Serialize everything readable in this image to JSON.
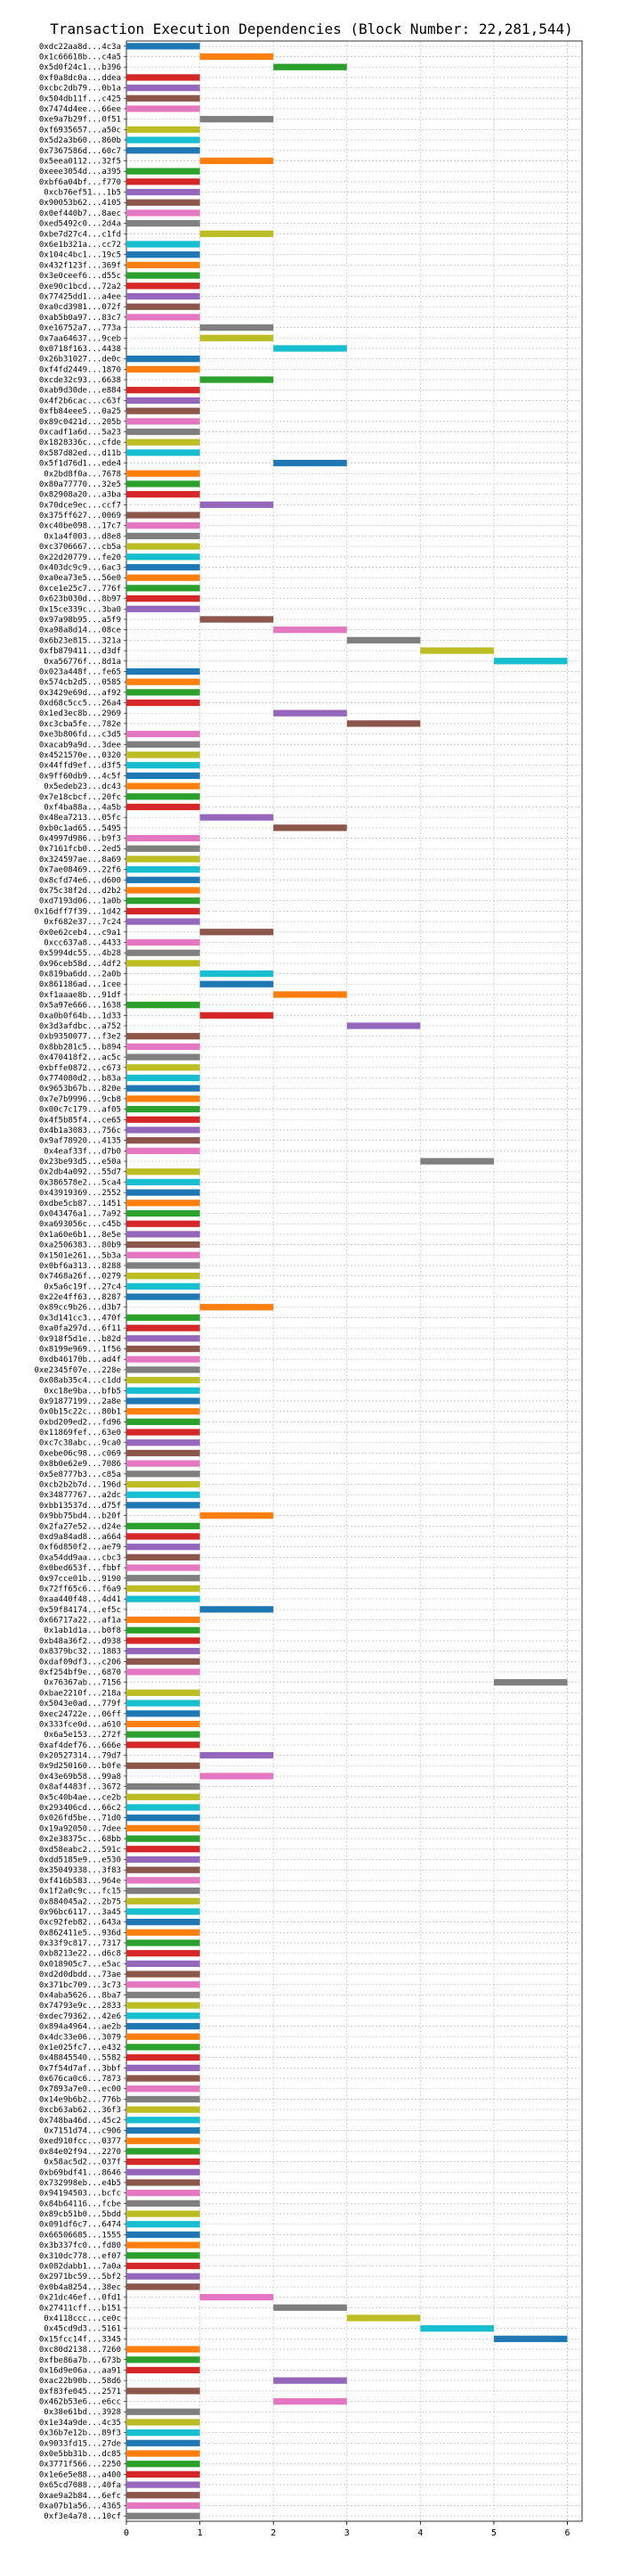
{
  "chart_data": {
    "type": "bar",
    "orientation": "horizontal-gantt",
    "title": "Transaction Execution Dependencies (Block Number: 22,281,544)",
    "xlabel": "",
    "ylabel": "",
    "xlim": [
      0,
      6.2
    ],
    "xticks": [
      0,
      1,
      2,
      3,
      4,
      5,
      6
    ],
    "grid": true,
    "colors": [
      "#1f77b4",
      "#ff7f0e",
      "#2ca02c",
      "#d62728",
      "#9467bd",
      "#8c564b",
      "#e377c2",
      "#7f7f7f",
      "#bcbd22",
      "#17becf"
    ],
    "transactions": [
      [
        "0xdc22aa8d...4c3a",
        0
      ],
      [
        "0x1c66618b...c4a5",
        1
      ],
      [
        "0x5d0f24c1...b396",
        2
      ],
      [
        "0xf0a8dc0a...ddea",
        0
      ],
      [
        "0xcbc2db79...0b1a",
        0
      ],
      [
        "0x504db11f...c425",
        0
      ],
      [
        "0x7474d4ee...66ee",
        0
      ],
      [
        "0xe9a7b29f...0f51",
        1
      ],
      [
        "0xf6935657...a50c",
        0
      ],
      [
        "0x5d2a3b60...860b",
        0
      ],
      [
        "0x7367586d...60c7",
        0
      ],
      [
        "0x5eea0112...32f5",
        1
      ],
      [
        "0xeee3054d...a395",
        0
      ],
      [
        "0xbf6a04bf...f770",
        0
      ],
      [
        "0xcb76ef51...1b5",
        0
      ],
      [
        "0x90053b62...4105",
        0
      ],
      [
        "0x0ef440b7...8aec",
        0
      ],
      [
        "0xed5492c0...2d4a",
        0
      ],
      [
        "0xbe7d27c4...c1fd",
        1
      ],
      [
        "0x6e1b321a...cc72",
        0
      ],
      [
        "0x104c4bc1...19c5",
        0
      ],
      [
        "0x432f123f...369f",
        0
      ],
      [
        "0x3e0ceef6...d55c",
        0
      ],
      [
        "0xe90c1bcd...72a2",
        0
      ],
      [
        "0x77425dd1...a4ee",
        0
      ],
      [
        "0xa0cd3981...072f",
        0
      ],
      [
        "0xab5b0a97...83c7",
        0
      ],
      [
        "0xe16752a7...773a",
        1
      ],
      [
        "0x7aa64637...9ceb",
        1
      ],
      [
        "0x0718f163...4438",
        2
      ],
      [
        "0x26b31027...de0c",
        0
      ],
      [
        "0xf4fd2449...1870",
        0
      ],
      [
        "0xcde32c93...6638",
        1
      ],
      [
        "0xab9d30de...e884",
        0
      ],
      [
        "0x4f2b6cac...c63f",
        0
      ],
      [
        "0xfb84eee5...0a25",
        0
      ],
      [
        "0x89c0421d...205b",
        0
      ],
      [
        "0xcadf1a6d...5a23",
        0
      ],
      [
        "0x1828336c...cfde",
        0
      ],
      [
        "0x587d82ed...d11b",
        0
      ],
      [
        "0x5f1d76d1...ede4",
        2
      ],
      [
        "0x2bd8f0a...7678",
        0
      ],
      [
        "0x80a77770...32e5",
        0
      ],
      [
        "0x82908a20...a3ba",
        0
      ],
      [
        "0x70dce9ec...ccf7",
        1
      ],
      [
        "0x375ff627...0069",
        0
      ],
      [
        "0xc40be098...17c7",
        0
      ],
      [
        "0x1a4f003...d8e8",
        0
      ],
      [
        "0xc3706667...cb5a",
        0
      ],
      [
        "0x22d20779...fe20",
        0
      ],
      [
        "0x403dc9c9...6ac3",
        0
      ],
      [
        "0xa0ea73e5...56e0",
        0
      ],
      [
        "0xce1e25c7...776f",
        0
      ],
      [
        "0x623b030d...8b97",
        0
      ],
      [
        "0x15ce339c...3ba0",
        0
      ],
      [
        "0x97a98b95...a5f9",
        1
      ],
      [
        "0xa98a8d14...08ce",
        2
      ],
      [
        "0x6b23e815...321a",
        3
      ],
      [
        "0xfb879411...d3df",
        4
      ],
      [
        "0xa56776f...8d1a",
        5
      ],
      [
        "0x023a448f...fe65",
        0
      ],
      [
        "0x574cb2d5...0585",
        0
      ],
      [
        "0x3429e69d...af92",
        0
      ],
      [
        "0xd68c5cc5...26a4",
        0
      ],
      [
        "0x1ed3ec8b...2969",
        2
      ],
      [
        "0xc3cba5fe...782e",
        3
      ],
      [
        "0xe3b806fd...c3d5",
        0
      ],
      [
        "0xacab9a9d...3dee",
        0
      ],
      [
        "0x4521570e...0320",
        0
      ],
      [
        "0x44ffd9ef...d3f5",
        0
      ],
      [
        "0x9ff60db9...4c5f",
        0
      ],
      [
        "0x5edeb23...dc43",
        0
      ],
      [
        "0x7e18cbcf...20fc",
        0
      ],
      [
        "0xf4ba88a...4a5b",
        0
      ],
      [
        "0x48ea7213...05fc",
        1
      ],
      [
        "0xb0c1ad65...5495",
        2
      ],
      [
        "0x4997d986...b9f3",
        0
      ],
      [
        "0x7161fcb0...2ed5",
        0
      ],
      [
        "0x324597ae...8a69",
        0
      ],
      [
        "0x7ae08469...22f6",
        0
      ],
      [
        "0x8cfd74e6...d600",
        0
      ],
      [
        "0x75c38f2d...d2b2",
        0
      ],
      [
        "0xd7193d06...1a0b",
        0
      ],
      [
        "0x16dff7f39...1d42",
        0
      ],
      [
        "0xf682e37...7c24",
        0
      ],
      [
        "0x0e62ceb4...c9a1",
        1
      ],
      [
        "0xcc637a8...4433",
        0
      ],
      [
        "0x5994dc55...4b28",
        0
      ],
      [
        "0x96ceb58d...4df2",
        0
      ],
      [
        "0x819ba6dd...2a0b",
        1
      ],
      [
        "0x861186ad...1cee",
        1
      ],
      [
        "0xf1aaae8b...91df",
        2
      ],
      [
        "0x5a97e666...1638",
        0
      ],
      [
        "0xa0b0f64b...1d33",
        1
      ],
      [
        "0x3d3afdbc...a752",
        3
      ],
      [
        "0xb9350077...f3e2",
        0
      ],
      [
        "0x8bb281c5...b894",
        0
      ],
      [
        "0x470418f2...ac5c",
        0
      ],
      [
        "0xbffe0872...c673",
        0
      ],
      [
        "0x774080d2...b83a",
        0
      ],
      [
        "0x9653b67b...820e",
        0
      ],
      [
        "0x7e7b9996...9cb8",
        0
      ],
      [
        "0x00c7c179...af05",
        0
      ],
      [
        "0x4f5b85f4...ce65",
        0
      ],
      [
        "0x4b1a3083...756c",
        0
      ],
      [
        "0x9af78920...4135",
        0
      ],
      [
        "0x4eaf33f...d7b0",
        0
      ],
      [
        "0x23be93d5...e50a",
        4
      ],
      [
        "0x2db4a092...55d7",
        0
      ],
      [
        "0x386578e2...5ca4",
        0
      ],
      [
        "0x43919369...2552",
        0
      ],
      [
        "0xdbe5cb87...1451",
        0
      ],
      [
        "0x043476a1...7a92",
        0
      ],
      [
        "0xa693056c...c45b",
        0
      ],
      [
        "0x1a60e6b1...8e5e",
        0
      ],
      [
        "0xa2506383...80b9",
        0
      ],
      [
        "0x1501e261...5b3a",
        0
      ],
      [
        "0x0bf6a313...8288",
        0
      ],
      [
        "0x7468a26f...0279",
        0
      ],
      [
        "0x5a6c19f...27c4",
        0
      ],
      [
        "0x22e4ff63...8287",
        0
      ],
      [
        "0x89cc9b26...d3b7",
        1
      ],
      [
        "0x3d141cc3...470f",
        0
      ],
      [
        "0xa0fa297d...6f11",
        0
      ],
      [
        "0x918f5d1e...b82d",
        0
      ],
      [
        "0x8199e969...1f56",
        0
      ],
      [
        "0xdb46170b...ad4f",
        0
      ],
      [
        "0xe2345f07e...228e",
        0
      ],
      [
        "0x08ab35c4...c1dd",
        0
      ],
      [
        "0xc18e9ba...bfb5",
        0
      ],
      [
        "0x91877199...2a8e",
        0
      ],
      [
        "0x0b15c22c...80b1",
        0
      ],
      [
        "0xbd209ed2...fd96",
        0
      ],
      [
        "0x11869fef...63e0",
        0
      ],
      [
        "0xc7c38abc...9ca0",
        0
      ],
      [
        "0xebe06c98...c069",
        0
      ],
      [
        "0x8b0e62e9...7086",
        0
      ],
      [
        "0x5e8777b3...c85a",
        0
      ],
      [
        "0xcb2b2b7d...196d",
        0
      ],
      [
        "0x34877767...a2dc",
        0
      ],
      [
        "0xbb13537d...d75f",
        0
      ],
      [
        "0x9bb75bd4...b20f",
        1
      ],
      [
        "0x2fa27e52...d24e",
        0
      ],
      [
        "0xd9a84ad8...a664",
        0
      ],
      [
        "0xf6d850f2...ae79",
        0
      ],
      [
        "0xa54dd9aa...cbc3",
        0
      ],
      [
        "0x0bed653f...fbbf",
        0
      ],
      [
        "0x97cce01b...9190",
        0
      ],
      [
        "0x72ff65c6...f6a9",
        0
      ],
      [
        "0xaa440f48...4d41",
        0
      ],
      [
        "0x59f84174...ef5c",
        1
      ],
      [
        "0x66717a22...af1a",
        0
      ],
      [
        "0x1ab1d1a...b0f8",
        0
      ],
      [
        "0xb48a36f2...d938",
        0
      ],
      [
        "0x8379bc32...1883",
        0
      ],
      [
        "0xdaf09df3...c206",
        0
      ],
      [
        "0xf254bf9e...6870",
        0
      ],
      [
        "0x76367ab...7156",
        5
      ],
      [
        "0xbae2210f...218a",
        0
      ],
      [
        "0x5043e0ad...779f",
        0
      ],
      [
        "0xec24722e...06ff",
        0
      ],
      [
        "0x333fce0d...a610",
        0
      ],
      [
        "0x6a5e153...272f",
        0
      ],
      [
        "0xaf4def76...666e",
        0
      ],
      [
        "0x20527314...79d7",
        1
      ],
      [
        "0x9d250160...b0fe",
        0
      ],
      [
        "0x43e69b58...99a8",
        1
      ],
      [
        "0x8af4483f...3672",
        0
      ],
      [
        "0x5c40b4ae...ce2b",
        0
      ],
      [
        "0x293406cd...66c2",
        0
      ],
      [
        "0x026fd5be...71d0",
        0
      ],
      [
        "0x19a92050...7dee",
        0
      ],
      [
        "0x2e38375c...68bb",
        0
      ],
      [
        "0xd58eabc2...591c",
        0
      ],
      [
        "0xdd5185e9...e530",
        0
      ],
      [
        "0x35049338...3f83",
        0
      ],
      [
        "0xf416b583...964e",
        0
      ],
      [
        "0x1f2a0c9c...fc15",
        0
      ],
      [
        "0x884045a2...2b75",
        0
      ],
      [
        "0x96bc6117...3a45",
        0
      ],
      [
        "0xc92feb82...643a",
        0
      ],
      [
        "0x862411e5...936d",
        0
      ],
      [
        "0x33f9c817...7317",
        0
      ],
      [
        "0xb8213e22...d6c8",
        0
      ],
      [
        "0x018905c7...e5ac",
        0
      ],
      [
        "0xd2d0dbdd...73ae",
        0
      ],
      [
        "0x371bc709...3c73",
        0
      ],
      [
        "0x4aba5626...8ba7",
        0
      ],
      [
        "0x74793e9c...2833",
        0
      ],
      [
        "0xdec79362...42e6",
        0
      ],
      [
        "0x894a4964...ae2b",
        0
      ],
      [
        "0x4dc33e06...3079",
        0
      ],
      [
        "0x1e025fc7...e432",
        0
      ],
      [
        "0x48845540...5582",
        0
      ],
      [
        "0x7f54d7af...3bbf",
        0
      ],
      [
        "0x676ca0c6...7873",
        0
      ],
      [
        "0x7893a7e0...ec00",
        0
      ],
      [
        "0x14e9b6b2...776b",
        0
      ],
      [
        "0xcb63ab62...36f3",
        0
      ],
      [
        "0x748ba46d...45c2",
        0
      ],
      [
        "0x7151d74...c906",
        0
      ],
      [
        "0xed910fcc...0377",
        0
      ],
      [
        "0x84e02f94...2270",
        0
      ],
      [
        "0x58ac5d2...037f",
        0
      ],
      [
        "0xb69bdf41...8646",
        0
      ],
      [
        "0x732998eb...e4b5",
        0
      ],
      [
        "0x94194503...bcfc",
        0
      ],
      [
        "0x84b64116...fcbe",
        0
      ],
      [
        "0x89cb51b0...5bdd",
        0
      ],
      [
        "0x091df6c7...6474",
        0
      ],
      [
        "0x66506685...1555",
        0
      ],
      [
        "0x3b337fc0...fd80",
        0
      ],
      [
        "0x310dc778...ef07",
        0
      ],
      [
        "0x082dabb1...7a0a",
        0
      ],
      [
        "0x2971bc59...5bf2",
        0
      ],
      [
        "0x0b4a8254...38ec",
        0
      ],
      [
        "0x21dc46ef...0fd1",
        1
      ],
      [
        "0x27411cff...b151",
        2
      ],
      [
        "0x4118ccc...ce0c",
        3
      ],
      [
        "0x45cd9d3...5161",
        4
      ],
      [
        "0x15fcc14f...3345",
        5
      ],
      [
        "0xc80d2138...7260",
        0
      ],
      [
        "0xfbe86a7b...673b",
        0
      ],
      [
        "0x16d9e06a...aa91",
        0
      ],
      [
        "0xac22b90b...58d6",
        2
      ],
      [
        "0xf83fe045...2571",
        0
      ],
      [
        "0x462b53e6...e6cc",
        2
      ],
      [
        "0x38e61bd...3928",
        0
      ],
      [
        "0x1e34a9de...4c35",
        0
      ],
      [
        "0x36b7e12b...89f3",
        0
      ],
      [
        "0x9033fd15...27de",
        0
      ],
      [
        "0x0e5bb31b...dc85",
        0
      ],
      [
        "0x3771f566...2250",
        0
      ],
      [
        "0x1e6e5e88...a400",
        0
      ],
      [
        "0x65cd7088...40fa",
        0
      ],
      [
        "0xae9a2b84...6efc",
        0
      ],
      [
        "0xa07b1a56...4365",
        0
      ],
      [
        "0xf3e4a78...10cf",
        0
      ]
    ]
  }
}
